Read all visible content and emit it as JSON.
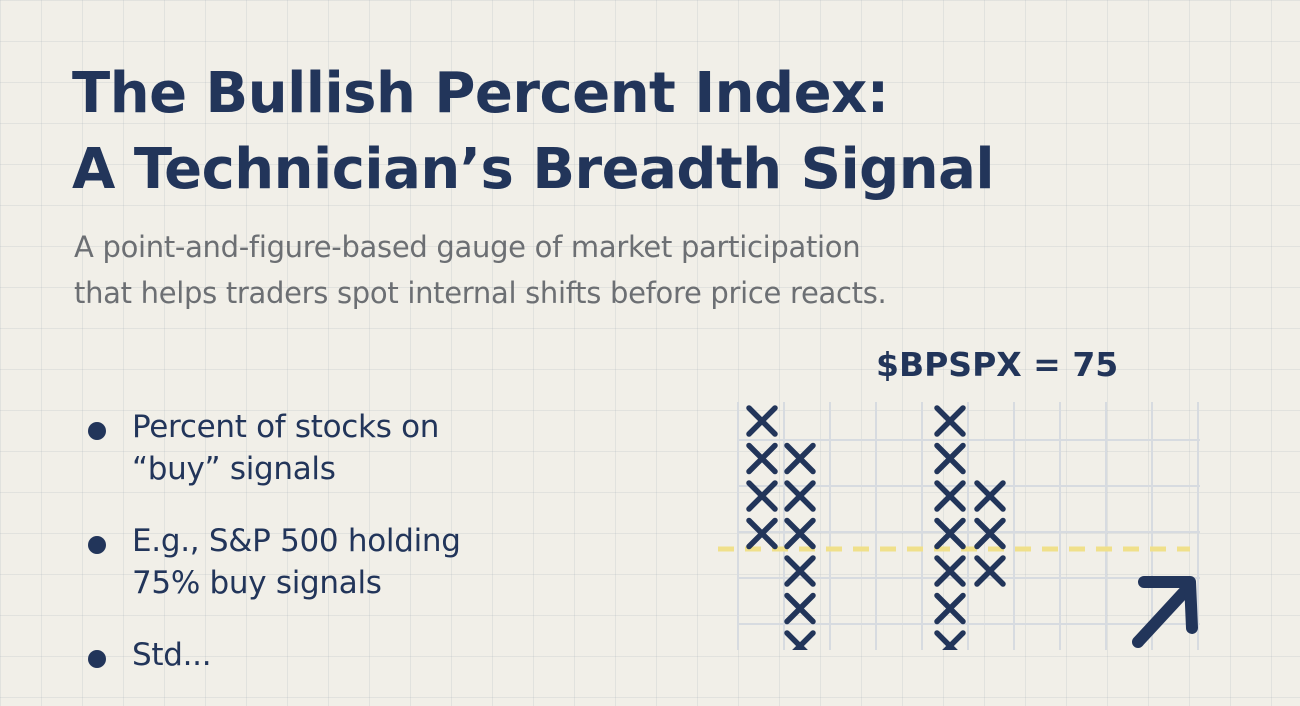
{
  "title": {
    "line1": "The Bullish Percent Index:",
    "line2": "A Technician’s Breadth Signal"
  },
  "subtitle": {
    "line1": "A point-and-figure-based gauge of market participation",
    "line2": "that helps traders spot internal shifts before price reacts."
  },
  "bullets": [
    {
      "line1": "Percent of stocks on",
      "line2": "“buy” signals"
    },
    {
      "line1": "E.g., S&P 500 holding",
      "line2": "75% buy signals"
    },
    {
      "line1": "Std...",
      "line2": ""
    }
  ],
  "chart_label": "$BPSPX = 75",
  "point_and_figure": {
    "mark": "X",
    "columns": [
      {
        "column": 1,
        "x_boxes": 4
      },
      {
        "column": 2,
        "x_boxes": 6
      },
      {
        "column": 3,
        "x_boxes": 0
      },
      {
        "column": 4,
        "x_boxes": 0
      },
      {
        "column": 5,
        "x_boxes": 7
      },
      {
        "column": 6,
        "x_boxes": 3
      }
    ],
    "threshold_line": "dashed",
    "trend_arrow": "up-right",
    "colors": {
      "marks": "#22355a",
      "threshold": "#f0e08a",
      "grid": "#d7dbe0"
    }
  }
}
